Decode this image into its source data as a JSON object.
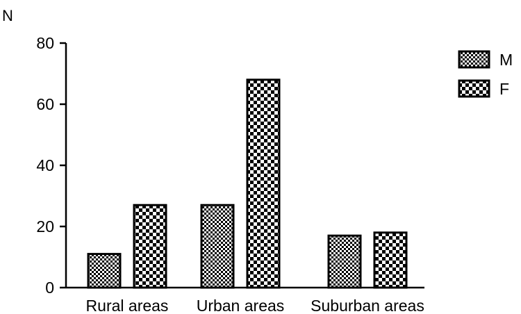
{
  "chart_data": {
    "type": "bar",
    "title": "",
    "xlabel": "",
    "ylabel": "N",
    "ylim": [
      0,
      80
    ],
    "yticks": [
      0,
      20,
      40,
      60,
      80
    ],
    "categories": [
      "Rural areas",
      "Urban areas",
      "Suburban areas"
    ],
    "series": [
      {
        "name": "M",
        "values": [
          11,
          27,
          17
        ],
        "pattern": "fine-checker"
      },
      {
        "name": "F",
        "values": [
          27,
          68,
          18
        ],
        "pattern": "coarse-checker"
      }
    ],
    "grid": false,
    "legend_position": "top-right"
  }
}
